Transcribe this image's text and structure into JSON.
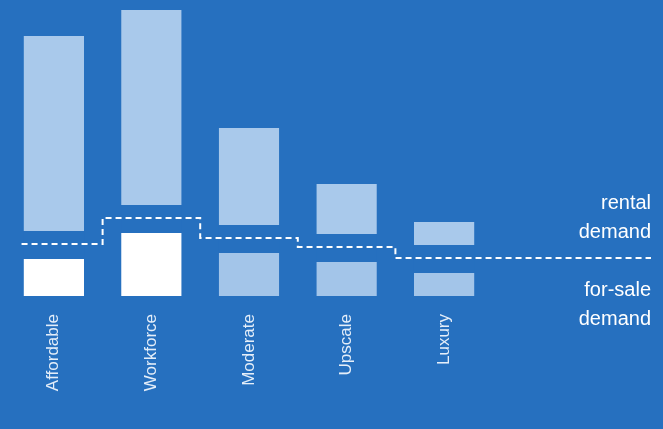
{
  "chart_data": {
    "type": "bar",
    "stacked": true,
    "grid": false,
    "tick_labels": "x",
    "categories": [
      "Affordable",
      "Workforce",
      "Moderate",
      "Upscale",
      "Luxury"
    ],
    "ylim": [
      0,
      290
    ],
    "series": [
      {
        "name": "for-sale demand",
        "colors": [
          "#ffffff",
          "#ffffff",
          "#a3c5e9",
          "#a3c5e9",
          "#a3c5e9"
        ],
        "values": [
          52,
          78,
          58,
          49,
          38
        ]
      },
      {
        "name": "rental demand",
        "color": "#a9c9eb",
        "values": [
          208,
          208,
          110,
          63,
          36
        ]
      }
    ]
  }
}
